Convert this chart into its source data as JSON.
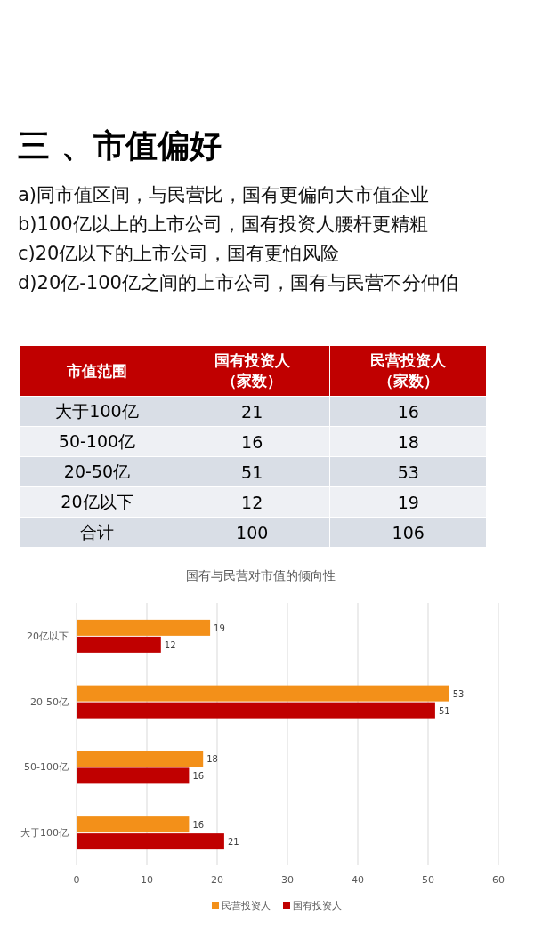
{
  "chart_data": [
    {
      "type": "other",
      "title": "三 、市值偏好",
      "annotations": [
        "a)同市值区间，与民营比，国有更偏向大市值企业",
        "b)100亿以上的上市公司，国有投资人腰杆更精粗",
        "c)20亿以下的上市公司，国有更怕风险",
        "d)20亿-100亿之间的上市公司，国有与民营不分仲伯"
      ]
    },
    {
      "type": "heatmap",
      "ylabel": "市值范围",
      "categories": [
        "国有投资人（家数）",
        "民营投资人（家数）"
      ],
      "y_categories": [
        "大于100亿",
        "50-100亿",
        "20-50亿",
        "20亿以下",
        "合计"
      ],
      "cells": [
        [
          21,
          16
        ],
        [
          16,
          18
        ],
        [
          51,
          53
        ],
        [
          12,
          19
        ],
        [
          100,
          106
        ]
      ],
      "data_labels": true
    },
    {
      "type": "bar",
      "orientation": "horizontal",
      "title": "国有与民营对市值的倾向性",
      "categories": [
        "20亿以下",
        "20-50亿",
        "50-100亿",
        "大于100亿"
      ],
      "series": [
        {
          "name": "民营投资人",
          "color": "#f39019",
          "values": [
            19,
            53,
            18,
            16
          ]
        },
        {
          "name": "国有投资人",
          "color": "#c00000",
          "values": [
            12,
            51,
            16,
            21
          ]
        }
      ],
      "xlim": [
        0,
        60
      ],
      "xticks": [
        0,
        10,
        20,
        30,
        40,
        50,
        60
      ],
      "grid": "x",
      "legend": "bottom",
      "data_labels": true
    }
  ]
}
